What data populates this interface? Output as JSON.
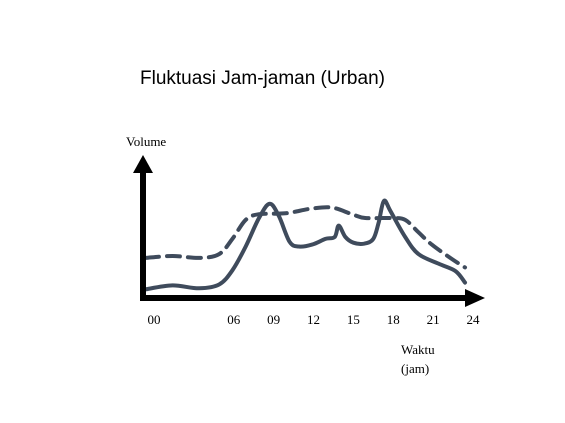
{
  "chart_data": {
    "type": "line",
    "title": "Fluktuasi Jam-jaman (Urban)",
    "ylabel": "Volume",
    "xlabel_line1": "Waktu",
    "xlabel_line2": "(jam)",
    "x_ticks": [
      "00",
      "06",
      "09",
      "12",
      "15",
      "18",
      "21",
      "24"
    ],
    "x_tick_values": [
      0,
      6,
      9,
      12,
      15,
      18,
      21,
      24
    ],
    "xlim": [
      0,
      24
    ],
    "ylim": [
      0,
      100
    ],
    "grid": false,
    "legend": "none",
    "series": [
      {
        "style": "solid",
        "color": "#3f4b5c",
        "points": [
          [
            0,
            5
          ],
          [
            2,
            9
          ],
          [
            4,
            6
          ],
          [
            5.5,
            10
          ],
          [
            6.5,
            25
          ],
          [
            7.5,
            50
          ],
          [
            8.5,
            80
          ],
          [
            9.3,
            95
          ],
          [
            10,
            82
          ],
          [
            10.8,
            55
          ],
          [
            11.5,
            50
          ],
          [
            12.5,
            52
          ],
          [
            13.5,
            58
          ],
          [
            14.2,
            60
          ],
          [
            14.5,
            72
          ],
          [
            15,
            60
          ],
          [
            15.6,
            54
          ],
          [
            16.4,
            53
          ],
          [
            17.1,
            58
          ],
          [
            17.5,
            75
          ],
          [
            17.9,
            98
          ],
          [
            18.4,
            87
          ],
          [
            19.5,
            60
          ],
          [
            20.5,
            42
          ],
          [
            22,
            32
          ],
          [
            23.3,
            24
          ],
          [
            24,
            12
          ]
        ]
      },
      {
        "style": "dashed",
        "color": "#3f4b5c",
        "points": [
          [
            0,
            38
          ],
          [
            2,
            40
          ],
          [
            4,
            38
          ],
          [
            5.5,
            42
          ],
          [
            6.5,
            58
          ],
          [
            7.5,
            78
          ],
          [
            8.5,
            84
          ],
          [
            10.5,
            85
          ],
          [
            12.5,
            90
          ],
          [
            14,
            91
          ],
          [
            15.5,
            84
          ],
          [
            16.5,
            80
          ],
          [
            18.5,
            80
          ],
          [
            19.5,
            78
          ],
          [
            20.5,
            65
          ],
          [
            21.5,
            52
          ],
          [
            23,
            37
          ],
          [
            24,
            28
          ]
        ]
      }
    ]
  }
}
